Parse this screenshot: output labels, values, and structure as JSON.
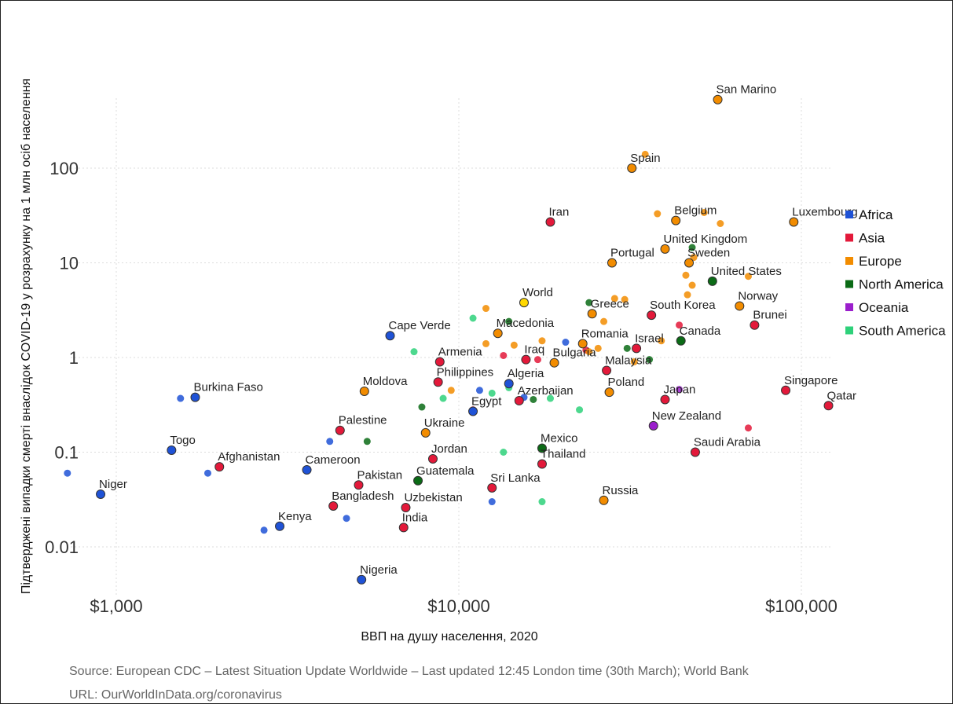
{
  "chart_data": {
    "type": "scatter",
    "xlabel": "ВВП на душу населення, 2020",
    "ylabel": "Підтверджені випадки смерті внаслідок COVID-19 у розрахунку на 1 млн осіб населення",
    "x_scale": "log",
    "y_scale": "log",
    "xlim": [
      700,
      130000
    ],
    "ylim": [
      0.0035,
      900
    ],
    "x_ticks": [
      {
        "value": 1000,
        "label": "$1,000"
      },
      {
        "value": 10000,
        "label": "$10,000"
      },
      {
        "value": 100000,
        "label": "$100,000"
      }
    ],
    "y_ticks": [
      {
        "value": 0.01,
        "label": "0.01"
      },
      {
        "value": 0.1,
        "label": "0.1"
      },
      {
        "value": 1,
        "label": "1"
      },
      {
        "value": 10,
        "label": "10"
      },
      {
        "value": 100,
        "label": "100"
      }
    ],
    "grid": true,
    "legend_position": "right",
    "regions": [
      {
        "name": "Africa",
        "color": "#1f52d6"
      },
      {
        "name": "Asia",
        "color": "#e3193a"
      },
      {
        "name": "Europe",
        "color": "#f28c00"
      },
      {
        "name": "North America",
        "color": "#0b6b16"
      },
      {
        "name": "Oceania",
        "color": "#9b1fcc"
      },
      {
        "name": "South America",
        "color": "#2ed17a"
      }
    ],
    "labeled_points": [
      {
        "label": "San Marino",
        "region": "Europe",
        "x": 57000,
        "y": 530
      },
      {
        "label": "Spain",
        "region": "Europe",
        "x": 32000,
        "y": 100
      },
      {
        "label": "Iran",
        "region": "Asia",
        "x": 18500,
        "y": 27
      },
      {
        "label": "Belgium",
        "region": "Europe",
        "x": 43000,
        "y": 28
      },
      {
        "label": "Luxembourg",
        "region": "Europe",
        "x": 95000,
        "y": 27
      },
      {
        "label": "United Kingdom",
        "region": "Europe",
        "x": 40000,
        "y": 14
      },
      {
        "label": "Portugal",
        "region": "Europe",
        "x": 28000,
        "y": 10
      },
      {
        "label": "Sweden",
        "region": "Europe",
        "x": 47000,
        "y": 10
      },
      {
        "label": "United States",
        "region": "North America",
        "x": 55000,
        "y": 6.4
      },
      {
        "label": "World",
        "region": "World",
        "x": 15500,
        "y": 3.8
      },
      {
        "label": "Greece",
        "region": "Europe",
        "x": 24500,
        "y": 2.9
      },
      {
        "label": "South Korea",
        "region": "Asia",
        "x": 36500,
        "y": 2.8
      },
      {
        "label": "Norway",
        "region": "Europe",
        "x": 66000,
        "y": 3.5
      },
      {
        "label": "Brunei",
        "region": "Asia",
        "x": 73000,
        "y": 2.2
      },
      {
        "label": "Cape Verde",
        "region": "Africa",
        "x": 6300,
        "y": 1.7
      },
      {
        "label": "Macedonia",
        "region": "Europe",
        "x": 13000,
        "y": 1.8
      },
      {
        "label": "Romania",
        "region": "Europe",
        "x": 23000,
        "y": 1.4
      },
      {
        "label": "Israel",
        "region": "Asia",
        "x": 33000,
        "y": 1.25
      },
      {
        "label": "Canada",
        "region": "North America",
        "x": 44500,
        "y": 1.5
      },
      {
        "label": "Armenia",
        "region": "Asia",
        "x": 8800,
        "y": 0.9
      },
      {
        "label": "Iraq",
        "region": "Asia",
        "x": 15700,
        "y": 0.95
      },
      {
        "label": "Bulgaria",
        "region": "Europe",
        "x": 19000,
        "y": 0.88
      },
      {
        "label": "Malaysia",
        "region": "Asia",
        "x": 27000,
        "y": 0.73
      },
      {
        "label": "Moldova",
        "region": "Europe",
        "x": 5300,
        "y": 0.44
      },
      {
        "label": "Philippines",
        "region": "Asia",
        "x": 8700,
        "y": 0.55
      },
      {
        "label": "Algeria",
        "region": "Africa",
        "x": 14000,
        "y": 0.53
      },
      {
        "label": "Poland",
        "region": "Europe",
        "x": 27500,
        "y": 0.43
      },
      {
        "label": "Japan",
        "region": "Asia",
        "x": 40000,
        "y": 0.36
      },
      {
        "label": "Singapore",
        "region": "Asia",
        "x": 90000,
        "y": 0.45
      },
      {
        "label": "Qatar",
        "region": "Asia",
        "x": 120000,
        "y": 0.31
      },
      {
        "label": "Burkina Faso",
        "region": "Africa",
        "x": 1700,
        "y": 0.38
      },
      {
        "label": "Egypt",
        "region": "Africa",
        "x": 11000,
        "y": 0.27
      },
      {
        "label": "Azerbaijan",
        "region": "Asia",
        "x": 15000,
        "y": 0.35
      },
      {
        "label": "Palestine",
        "region": "Asia",
        "x": 4500,
        "y": 0.17
      },
      {
        "label": "Ukraine",
        "region": "Europe",
        "x": 8000,
        "y": 0.16
      },
      {
        "label": "New Zealand",
        "region": "Oceania",
        "x": 37000,
        "y": 0.19
      },
      {
        "label": "Togo",
        "region": "Africa",
        "x": 1450,
        "y": 0.105
      },
      {
        "label": "Afghanistan",
        "region": "Asia",
        "x": 2000,
        "y": 0.07
      },
      {
        "label": "Cameroon",
        "region": "Africa",
        "x": 3600,
        "y": 0.065
      },
      {
        "label": "Jordan",
        "region": "Asia",
        "x": 8400,
        "y": 0.085
      },
      {
        "label": "Mexico",
        "region": "North America",
        "x": 17500,
        "y": 0.11
      },
      {
        "label": "Thailand",
        "region": "Asia",
        "x": 17500,
        "y": 0.075
      },
      {
        "label": "Saudi Arabia",
        "region": "Asia",
        "x": 49000,
        "y": 0.1
      },
      {
        "label": "Niger",
        "region": "Africa",
        "x": 900,
        "y": 0.036
      },
      {
        "label": "Pakistan",
        "region": "Asia",
        "x": 5100,
        "y": 0.045
      },
      {
        "label": "Guatemala",
        "region": "North America",
        "x": 7600,
        "y": 0.05
      },
      {
        "label": "Sri Lanka",
        "region": "Asia",
        "x": 12500,
        "y": 0.042
      },
      {
        "label": "Russia",
        "region": "Europe",
        "x": 26500,
        "y": 0.031
      },
      {
        "label": "Bangladesh",
        "region": "Asia",
        "x": 4300,
        "y": 0.027
      },
      {
        "label": "Uzbekistan",
        "region": "Asia",
        "x": 7000,
        "y": 0.026
      },
      {
        "label": "Kenya",
        "region": "Africa",
        "x": 3000,
        "y": 0.0165
      },
      {
        "label": "India",
        "region": "Asia",
        "x": 6900,
        "y": 0.016
      },
      {
        "label": "Nigeria",
        "region": "Africa",
        "x": 5200,
        "y": 0.0045
      }
    ],
    "other_points": [
      {
        "region": "Africa",
        "x": 720,
        "y": 0.06
      },
      {
        "region": "Africa",
        "x": 1540,
        "y": 0.37
      },
      {
        "region": "Africa",
        "x": 1850,
        "y": 0.06
      },
      {
        "region": "Africa",
        "x": 4200,
        "y": 0.13
      },
      {
        "region": "Africa",
        "x": 2700,
        "y": 0.015
      },
      {
        "region": "Africa",
        "x": 4700,
        "y": 0.02
      },
      {
        "region": "Africa",
        "x": 11500,
        "y": 0.45
      },
      {
        "region": "Africa",
        "x": 12500,
        "y": 0.03
      },
      {
        "region": "Africa",
        "x": 15500,
        "y": 0.38
      },
      {
        "region": "Africa",
        "x": 20500,
        "y": 1.45
      },
      {
        "region": "Asia",
        "x": 11000,
        "y": 0.28
      },
      {
        "region": "Asia",
        "x": 13500,
        "y": 1.05
      },
      {
        "region": "Asia",
        "x": 17000,
        "y": 0.95
      },
      {
        "region": "Asia",
        "x": 23500,
        "y": 1.2
      },
      {
        "region": "Asia",
        "x": 44000,
        "y": 2.2
      },
      {
        "region": "Asia",
        "x": 70000,
        "y": 0.18
      },
      {
        "region": "Europe",
        "x": 9500,
        "y": 0.45
      },
      {
        "region": "Europe",
        "x": 12000,
        "y": 1.4
      },
      {
        "region": "Europe",
        "x": 12000,
        "y": 3.3
      },
      {
        "region": "Europe",
        "x": 14500,
        "y": 1.35
      },
      {
        "region": "Europe",
        "x": 17500,
        "y": 1.5
      },
      {
        "region": "Europe",
        "x": 24000,
        "y": 1.15
      },
      {
        "region": "Europe",
        "x": 25500,
        "y": 1.25
      },
      {
        "region": "Europe",
        "x": 26500,
        "y": 2.4
      },
      {
        "region": "Europe",
        "x": 28500,
        "y": 4.2
      },
      {
        "region": "Europe",
        "x": 30500,
        "y": 4.1
      },
      {
        "region": "Europe",
        "x": 32500,
        "y": 0.9
      },
      {
        "region": "Europe",
        "x": 35000,
        "y": 140
      },
      {
        "region": "Europe",
        "x": 38000,
        "y": 33
      },
      {
        "region": "Europe",
        "x": 39000,
        "y": 1.5
      },
      {
        "region": "Europe",
        "x": 46000,
        "y": 7.4
      },
      {
        "region": "Europe",
        "x": 46500,
        "y": 4.6
      },
      {
        "region": "Europe",
        "x": 48000,
        "y": 5.8
      },
      {
        "region": "Europe",
        "x": 48500,
        "y": 11.4
      },
      {
        "region": "Europe",
        "x": 52000,
        "y": 34
      },
      {
        "region": "Europe",
        "x": 58000,
        "y": 26
      },
      {
        "region": "Europe",
        "x": 70000,
        "y": 7.2
      },
      {
        "region": "North America",
        "x": 7800,
        "y": 0.3
      },
      {
        "region": "North America",
        "x": 5400,
        "y": 0.13
      },
      {
        "region": "North America",
        "x": 14000,
        "y": 2.4
      },
      {
        "region": "North America",
        "x": 16500,
        "y": 0.36
      },
      {
        "region": "North America",
        "x": 24000,
        "y": 3.8
      },
      {
        "region": "North America",
        "x": 31000,
        "y": 1.25
      },
      {
        "region": "North America",
        "x": 36000,
        "y": 0.95
      },
      {
        "region": "North America",
        "x": 48000,
        "y": 14.5
      },
      {
        "region": "Oceania",
        "x": 44000,
        "y": 0.46
      },
      {
        "region": "South America",
        "x": 7400,
        "y": 1.15
      },
      {
        "region": "South America",
        "x": 9000,
        "y": 0.37
      },
      {
        "region": "South America",
        "x": 11000,
        "y": 2.6
      },
      {
        "region": "South America",
        "x": 12500,
        "y": 0.42
      },
      {
        "region": "South America",
        "x": 13500,
        "y": 0.1
      },
      {
        "region": "South America",
        "x": 14000,
        "y": 0.48
      },
      {
        "region": "South America",
        "x": 17500,
        "y": 0.03
      },
      {
        "region": "South America",
        "x": 18500,
        "y": 0.37
      },
      {
        "region": "South America",
        "x": 22500,
        "y": 0.28
      }
    ],
    "world_color": "#ffd800"
  },
  "source_text": "Source: European CDC – Latest Situation Update Worldwide – Last updated 12:45 London time (30th March); World Bank",
  "url_text": "URL: OurWorldInData.org/coronavirus"
}
